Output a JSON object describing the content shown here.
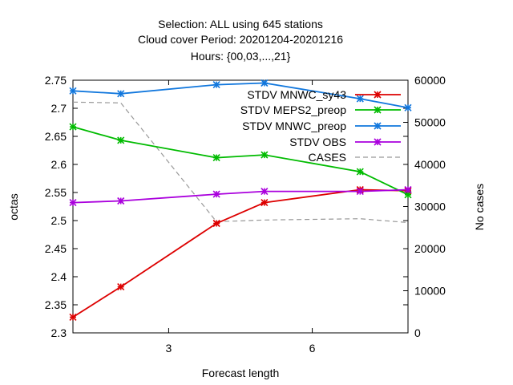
{
  "chart_data": {
    "type": "line",
    "title_lines": [
      "Selection: ALL using   645 stations",
      "Cloud cover   Period: 20201204-20201216",
      "Hours: {00,03,...,21}"
    ],
    "xlabel": "Forecast length",
    "ylabel": "octas",
    "y2label": "No cases",
    "xlim": [
      1,
      8
    ],
    "ylim": [
      2.3,
      2.75
    ],
    "y2lim": [
      0,
      60000
    ],
    "x_ticks": [
      3,
      6
    ],
    "y_ticks": [
      2.3,
      2.35,
      2.4,
      2.45,
      2.5,
      2.55,
      2.6,
      2.65,
      2.7,
      2.75
    ],
    "y_tick_labels": [
      "2.3",
      "2.35",
      "2.4",
      "2.45",
      "2.5",
      "2.55",
      "2.6",
      "2.65",
      "2.7",
      "2.75"
    ],
    "y2_ticks": [
      0,
      10000,
      20000,
      30000,
      40000,
      50000,
      60000
    ],
    "legend_position": "top-right",
    "grid": false,
    "series": [
      {
        "name": "STDV MNWC_sy43",
        "color": "#dd0000",
        "marker": "x-star",
        "x": [
          1,
          2,
          4,
          5,
          7,
          8
        ],
        "values": [
          2.328,
          2.382,
          2.495,
          2.532,
          2.555,
          2.553
        ]
      },
      {
        "name": "STDV MEPS2_preop",
        "color": "#00bb00",
        "marker": "x-star",
        "x": [
          1,
          2,
          4,
          5,
          7,
          8
        ],
        "values": [
          2.667,
          2.643,
          2.612,
          2.617,
          2.587,
          2.546
        ]
      },
      {
        "name": "STDV MNWC_preop",
        "color": "#1177dd",
        "marker": "x-star",
        "x": [
          1,
          2,
          4,
          5,
          7,
          8
        ],
        "values": [
          2.731,
          2.726,
          2.742,
          2.745,
          2.717,
          2.701
        ]
      },
      {
        "name": "STDV OBS",
        "color": "#aa00dd",
        "marker": "x-star",
        "x": [
          1,
          2,
          4,
          5,
          7,
          8
        ],
        "values": [
          2.532,
          2.535,
          2.547,
          2.552,
          2.552,
          2.555
        ]
      },
      {
        "name": "CASES",
        "color": "#999999",
        "dashed": true,
        "axis": "y2",
        "x": [
          1,
          2,
          4,
          5,
          7,
          8
        ],
        "values": [
          54800,
          54600,
          26400,
          26800,
          27100,
          26200
        ]
      }
    ]
  }
}
